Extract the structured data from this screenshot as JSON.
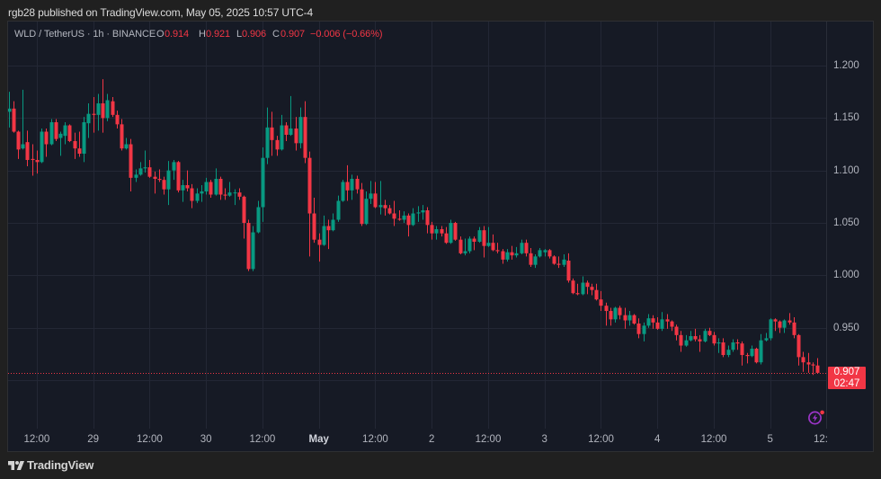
{
  "header": {
    "published_text": "rgb28 published on TradingView.com, May 05, 2025 10:57 UTC-4"
  },
  "legend": {
    "symbol": "WLD / TetherUS · 1h · BINANCE",
    "open_label": "O",
    "open": "0.914",
    "high_label": "H",
    "high": "0.921",
    "low_label": "L",
    "low": "0.906",
    "close_label": "C",
    "close": "0.907",
    "change": "−0.006 (−0.66%)"
  },
  "price_axis": {
    "last_price": "0.907",
    "countdown": "02:47"
  },
  "footer": {
    "brand": "TradingView"
  },
  "icons": {
    "alert": "lightning-alert-icon",
    "logo": "tradingview-logo-icon"
  },
  "chart_data": {
    "type": "candlestick",
    "title": "WLD / TetherUS · 1h · BINANCE",
    "xlabel": "",
    "ylabel": "",
    "ylim": [
      0.8546,
      1.242
    ],
    "grid": true,
    "legend_position": "top-left",
    "colors": {
      "up": "#089981",
      "down": "#f23645"
    },
    "y_ticks": [
      "1.200",
      "1.150",
      "1.100",
      "1.050",
      "1.000",
      "0.950"
    ],
    "x_ticks": [
      {
        "label": "12:00",
        "index": 6
      },
      {
        "label": "29",
        "index": 18
      },
      {
        "label": "12:00",
        "index": 30
      },
      {
        "label": "30",
        "index": 42
      },
      {
        "label": "12:00",
        "index": 54
      },
      {
        "label": "May",
        "index": 66,
        "bold": true
      },
      {
        "label": "12:00",
        "index": 78
      },
      {
        "label": "2",
        "index": 90
      },
      {
        "label": "12:00",
        "index": 102
      },
      {
        "label": "3",
        "index": 114
      },
      {
        "label": "12:00",
        "index": 126
      },
      {
        "label": "4",
        "index": 138
      },
      {
        "label": "12:00",
        "index": 150
      },
      {
        "label": "5",
        "index": 162
      },
      {
        "label": "12:",
        "index": 174,
        "clipped": true
      }
    ],
    "last": {
      "open": 0.914,
      "high": 0.921,
      "low": 0.906,
      "close": 0.907,
      "change": -0.006,
      "change_pct": -0.66
    },
    "series": [
      {
        "name": "WLD/USDT 1h",
        "fields": [
          "open",
          "high",
          "low",
          "close"
        ],
        "values": [
          [
            1.156,
            1.175,
            1.141,
            1.159
          ],
          [
            1.159,
            1.166,
            1.136,
            1.137
          ],
          [
            1.137,
            1.138,
            1.111,
            1.12
          ],
          [
            1.121,
            1.177,
            1.12,
            1.125
          ],
          [
            1.127,
            1.138,
            1.104,
            1.11
          ],
          [
            1.111,
            1.125,
            1.095,
            1.11
          ],
          [
            1.11,
            1.119,
            1.097,
            1.108
          ],
          [
            1.108,
            1.14,
            1.107,
            1.137
          ],
          [
            1.137,
            1.14,
            1.113,
            1.125
          ],
          [
            1.125,
            1.149,
            1.124,
            1.146
          ],
          [
            1.146,
            1.149,
            1.128,
            1.13
          ],
          [
            1.131,
            1.137,
            1.114,
            1.135
          ],
          [
            1.133,
            1.146,
            1.125,
            1.143
          ],
          [
            1.143,
            1.144,
            1.127,
            1.128
          ],
          [
            1.128,
            1.136,
            1.111,
            1.121
          ],
          [
            1.121,
            1.137,
            1.113,
            1.116
          ],
          [
            1.116,
            1.151,
            1.108,
            1.146
          ],
          [
            1.145,
            1.164,
            1.131,
            1.154
          ],
          [
            1.154,
            1.17,
            1.136,
            1.153
          ],
          [
            1.153,
            1.173,
            1.138,
            1.164
          ],
          [
            1.164,
            1.187,
            1.136,
            1.15
          ],
          [
            1.15,
            1.173,
            1.147,
            1.167
          ],
          [
            1.166,
            1.17,
            1.151,
            1.153
          ],
          [
            1.153,
            1.157,
            1.14,
            1.144
          ],
          [
            1.144,
            1.149,
            1.119,
            1.121
          ],
          [
            1.121,
            1.131,
            1.12,
            1.125
          ],
          [
            1.125,
            1.13,
            1.08,
            1.093
          ],
          [
            1.093,
            1.101,
            1.089,
            1.096
          ],
          [
            1.096,
            1.108,
            1.095,
            1.102
          ],
          [
            1.102,
            1.119,
            1.098,
            1.103
          ],
          [
            1.103,
            1.11,
            1.093,
            1.094
          ],
          [
            1.094,
            1.099,
            1.078,
            1.092
          ],
          [
            1.092,
            1.101,
            1.089,
            1.091
          ],
          [
            1.091,
            1.094,
            1.077,
            1.082
          ],
          [
            1.082,
            1.109,
            1.067,
            1.1
          ],
          [
            1.1,
            1.11,
            1.091,
            1.108
          ],
          [
            1.108,
            1.109,
            1.079,
            1.081
          ],
          [
            1.081,
            1.091,
            1.07,
            1.086
          ],
          [
            1.086,
            1.1,
            1.08,
            1.083
          ],
          [
            1.083,
            1.087,
            1.064,
            1.071
          ],
          [
            1.071,
            1.083,
            1.069,
            1.078
          ],
          [
            1.078,
            1.086,
            1.07,
            1.08
          ],
          [
            1.08,
            1.093,
            1.077,
            1.089
          ],
          [
            1.089,
            1.091,
            1.074,
            1.077
          ],
          [
            1.077,
            1.102,
            1.076,
            1.092
          ],
          [
            1.092,
            1.094,
            1.072,
            1.077
          ],
          [
            1.077,
            1.083,
            1.072,
            1.076
          ],
          [
            1.076,
            1.089,
            1.075,
            1.079
          ],
          [
            1.079,
            1.082,
            1.067,
            1.079
          ],
          [
            1.079,
            1.083,
            1.072,
            1.075
          ],
          [
            1.075,
            1.076,
            1.035,
            1.05
          ],
          [
            1.05,
            1.053,
            1.004,
            1.006
          ],
          [
            1.006,
            1.047,
            1.004,
            1.041
          ],
          [
            1.041,
            1.071,
            1.04,
            1.065
          ],
          [
            1.065,
            1.122,
            1.051,
            1.112
          ],
          [
            1.112,
            1.16,
            1.106,
            1.141
          ],
          [
            1.141,
            1.156,
            1.114,
            1.129
          ],
          [
            1.129,
            1.133,
            1.114,
            1.12
          ],
          [
            1.12,
            1.153,
            1.119,
            1.143
          ],
          [
            1.143,
            1.146,
            1.128,
            1.134
          ],
          [
            1.134,
            1.171,
            1.133,
            1.14
          ],
          [
            1.14,
            1.151,
            1.119,
            1.126
          ],
          [
            1.126,
            1.16,
            1.121,
            1.151
          ],
          [
            1.151,
            1.166,
            1.107,
            1.112
          ],
          [
            1.112,
            1.118,
            1.018,
            1.059
          ],
          [
            1.059,
            1.074,
            1.031,
            1.034
          ],
          [
            1.034,
            1.04,
            1.013,
            1.029
          ],
          [
            1.029,
            1.057,
            1.028,
            1.047
          ],
          [
            1.047,
            1.053,
            1.025,
            1.043
          ],
          [
            1.043,
            1.059,
            1.042,
            1.053
          ],
          [
            1.053,
            1.076,
            1.051,
            1.071
          ],
          [
            1.071,
            1.091,
            1.07,
            1.089
          ],
          [
            1.089,
            1.105,
            1.071,
            1.081
          ],
          [
            1.081,
            1.096,
            1.072,
            1.092
          ],
          [
            1.092,
            1.095,
            1.078,
            1.082
          ],
          [
            1.082,
            1.088,
            1.047,
            1.049
          ],
          [
            1.049,
            1.08,
            1.048,
            1.073
          ],
          [
            1.073,
            1.09,
            1.068,
            1.078
          ],
          [
            1.078,
            1.089,
            1.064,
            1.065
          ],
          [
            1.065,
            1.09,
            1.058,
            1.067
          ],
          [
            1.067,
            1.072,
            1.057,
            1.064
          ],
          [
            1.064,
            1.067,
            1.058,
            1.059
          ],
          [
            1.059,
            1.071,
            1.047,
            1.054
          ],
          [
            1.054,
            1.062,
            1.052,
            1.053
          ],
          [
            1.053,
            1.061,
            1.05,
            1.057
          ],
          [
            1.057,
            1.059,
            1.037,
            1.048
          ],
          [
            1.048,
            1.064,
            1.047,
            1.059
          ],
          [
            1.059,
            1.066,
            1.051,
            1.06
          ],
          [
            1.06,
            1.067,
            1.053,
            1.062
          ],
          [
            1.062,
            1.065,
            1.04,
            1.048
          ],
          [
            1.048,
            1.051,
            1.034,
            1.04
          ],
          [
            1.04,
            1.047,
            1.034,
            1.044
          ],
          [
            1.044,
            1.047,
            1.037,
            1.04
          ],
          [
            1.04,
            1.046,
            1.03,
            1.031
          ],
          [
            1.031,
            1.053,
            1.03,
            1.05
          ],
          [
            1.05,
            1.051,
            1.033,
            1.034
          ],
          [
            1.034,
            1.037,
            1.02,
            1.021
          ],
          [
            1.021,
            1.035,
            1.019,
            1.023
          ],
          [
            1.023,
            1.037,
            1.021,
            1.035
          ],
          [
            1.035,
            1.037,
            1.024,
            1.032
          ],
          [
            1.032,
            1.046,
            1.031,
            1.043
          ],
          [
            1.043,
            1.047,
            1.017,
            1.028
          ],
          [
            1.028,
            1.046,
            1.027,
            1.031
          ],
          [
            1.031,
            1.039,
            1.023,
            1.024
          ],
          [
            1.024,
            1.031,
            1.021,
            1.023
          ],
          [
            1.023,
            1.025,
            1.011,
            1.015
          ],
          [
            1.015,
            1.025,
            1.013,
            1.022
          ],
          [
            1.022,
            1.028,
            1.015,
            1.019
          ],
          [
            1.019,
            1.027,
            1.017,
            1.021
          ],
          [
            1.021,
            1.034,
            1.02,
            1.031
          ],
          [
            1.031,
            1.034,
            1.018,
            1.021
          ],
          [
            1.021,
            1.026,
            1.008,
            1.01
          ],
          [
            1.01,
            1.02,
            1.007,
            1.018
          ],
          [
            1.018,
            1.026,
            1.017,
            1.024
          ],
          [
            1.022,
            1.025,
            1.018,
            1.024
          ],
          [
            1.024,
            1.025,
            1.016,
            1.018
          ],
          [
            1.018,
            1.019,
            1.01,
            1.011
          ],
          [
            1.011,
            1.018,
            1.007,
            1.01
          ],
          [
            1.01,
            1.02,
            1.008,
            1.015
          ],
          [
            1.014,
            1.021,
            0.993,
            0.995
          ],
          [
            0.995,
            0.997,
            0.982,
            0.983
          ],
          [
            0.983,
            0.992,
            0.981,
            0.982
          ],
          [
            0.982,
            0.999,
            0.981,
            0.993
          ],
          [
            0.993,
            0.995,
            0.982,
            0.989
          ],
          [
            0.989,
            0.992,
            0.981,
            0.986
          ],
          [
            0.986,
            0.992,
            0.976,
            0.977
          ],
          [
            0.977,
            0.985,
            0.966,
            0.971
          ],
          [
            0.971,
            0.974,
            0.952,
            0.966
          ],
          [
            0.966,
            0.969,
            0.952,
            0.958
          ],
          [
            0.958,
            0.97,
            0.955,
            0.969
          ],
          [
            0.969,
            0.971,
            0.958,
            0.962
          ],
          [
            0.962,
            0.969,
            0.949,
            0.957
          ],
          [
            0.957,
            0.966,
            0.952,
            0.962
          ],
          [
            0.962,
            0.963,
            0.953,
            0.954
          ],
          [
            0.954,
            0.959,
            0.94,
            0.944
          ],
          [
            0.944,
            0.955,
            0.937,
            0.952
          ],
          [
            0.952,
            0.963,
            0.95,
            0.959
          ],
          [
            0.959,
            0.962,
            0.949,
            0.955
          ],
          [
            0.955,
            0.96,
            0.948,
            0.949
          ],
          [
            0.949,
            0.965,
            0.947,
            0.958
          ],
          [
            0.958,
            0.963,
            0.949,
            0.956
          ],
          [
            0.956,
            0.957,
            0.947,
            0.951
          ],
          [
            0.951,
            0.953,
            0.938,
            0.943
          ],
          [
            0.943,
            0.947,
            0.927,
            0.933
          ],
          [
            0.933,
            0.943,
            0.932,
            0.938
          ],
          [
            0.938,
            0.947,
            0.937,
            0.942
          ],
          [
            0.942,
            0.949,
            0.937,
            0.939
          ],
          [
            0.939,
            0.943,
            0.927,
            0.937
          ],
          [
            0.937,
            0.949,
            0.936,
            0.947
          ],
          [
            0.947,
            0.95,
            0.942,
            0.943
          ],
          [
            0.943,
            0.946,
            0.933,
            0.935
          ],
          [
            0.935,
            0.94,
            0.926,
            0.936
          ],
          [
            0.936,
            0.94,
            0.922,
            0.924
          ],
          [
            0.924,
            0.933,
            0.922,
            0.929
          ],
          [
            0.929,
            0.939,
            0.927,
            0.936
          ],
          [
            0.936,
            0.939,
            0.929,
            0.935
          ],
          [
            0.935,
            0.937,
            0.914,
            0.924
          ],
          [
            0.924,
            0.926,
            0.916,
            0.923
          ],
          [
            0.923,
            0.933,
            0.922,
            0.93
          ],
          [
            0.93,
            0.931,
            0.916,
            0.917
          ],
          [
            0.917,
            0.944,
            0.915,
            0.938
          ],
          [
            0.938,
            0.945,
            0.937,
            0.94
          ],
          [
            0.94,
            0.959,
            0.938,
            0.958
          ],
          [
            0.958,
            0.959,
            0.947,
            0.956
          ],
          [
            0.956,
            0.957,
            0.945,
            0.95
          ],
          [
            0.95,
            0.958,
            0.945,
            0.957
          ],
          [
            0.957,
            0.964,
            0.953,
            0.955
          ],
          [
            0.955,
            0.96,
            0.94,
            0.943
          ],
          [
            0.943,
            0.944,
            0.914,
            0.922
          ],
          [
            0.922,
            0.927,
            0.908,
            0.917
          ],
          [
            0.917,
            0.926,
            0.907,
            0.915
          ],
          [
            0.915,
            0.917,
            0.905,
            0.914
          ],
          [
            0.914,
            0.921,
            0.906,
            0.907
          ]
        ]
      }
    ]
  }
}
